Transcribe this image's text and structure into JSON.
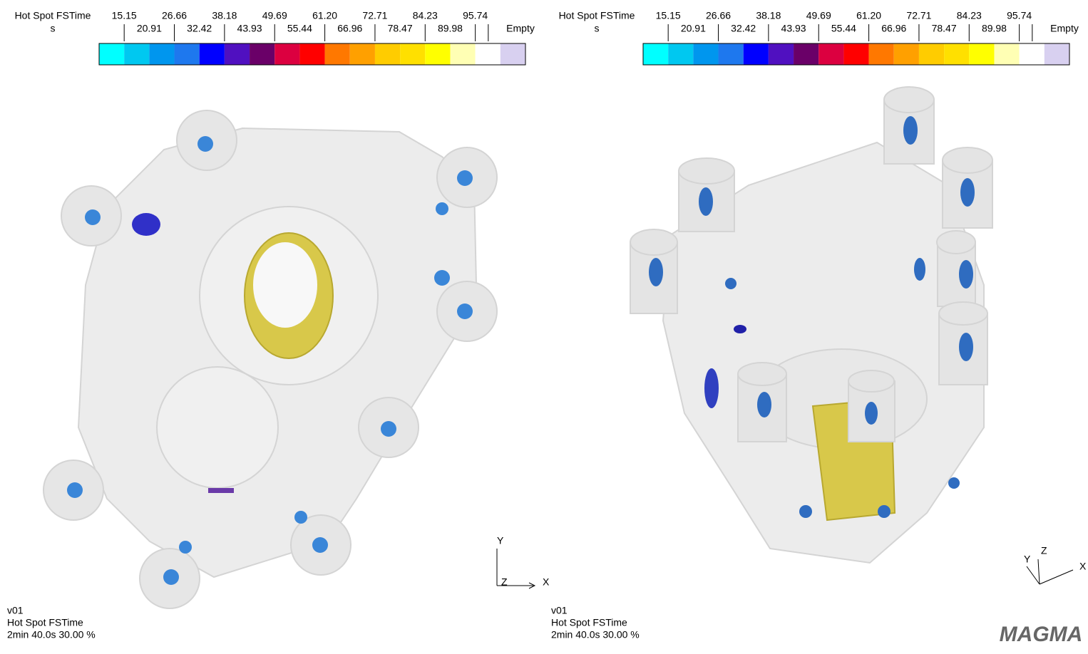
{
  "panels": [
    {
      "legend": {
        "title": "Hot Spot FSTime",
        "unit": "s",
        "ticks": [
          "15.15",
          "20.91",
          "26.66",
          "32.42",
          "38.18",
          "43.93",
          "49.69",
          "55.44",
          "61.20",
          "66.96",
          "72.71",
          "78.47",
          "84.23",
          "89.98",
          "95.74"
        ],
        "empty_label": "Empty",
        "colors": [
          "#00ffff",
          "#00c8f0",
          "#0096ee",
          "#1e78ee",
          "#0000ff",
          "#5010c0",
          "#6a0068",
          "#dc0040",
          "#ff0000",
          "#ff7800",
          "#ffa000",
          "#ffcc00",
          "#ffe000",
          "#ffff00",
          "#ffffb4",
          "#ffffff",
          "#d8d0f0"
        ]
      },
      "info": [
        "v01",
        "Hot Spot FSTime",
        "2min 40.0s 30.00 %"
      ],
      "axes": [
        "Y",
        "Z",
        "X"
      ]
    },
    {
      "legend": {
        "title": "Hot Spot FSTime",
        "unit": "s",
        "ticks": [
          "15.15",
          "20.91",
          "26.66",
          "32.42",
          "38.18",
          "43.93",
          "49.69",
          "55.44",
          "61.20",
          "66.96",
          "72.71",
          "78.47",
          "84.23",
          "89.98",
          "95.74"
        ],
        "empty_label": "Empty",
        "colors": [
          "#00ffff",
          "#00c8f0",
          "#0096ee",
          "#1e78ee",
          "#0000ff",
          "#5010c0",
          "#6a0068",
          "#dc0040",
          "#ff0000",
          "#ff7800",
          "#ffa000",
          "#ffcc00",
          "#ffe000",
          "#ffff00",
          "#ffffb4",
          "#ffffff",
          "#d8d0f0"
        ]
      },
      "info": [
        "v01",
        "Hot Spot FSTime",
        "2min 40.0s 30.00 %"
      ],
      "axes": [
        "Y",
        "Z",
        "X"
      ]
    }
  ],
  "logo": "MAGMA"
}
